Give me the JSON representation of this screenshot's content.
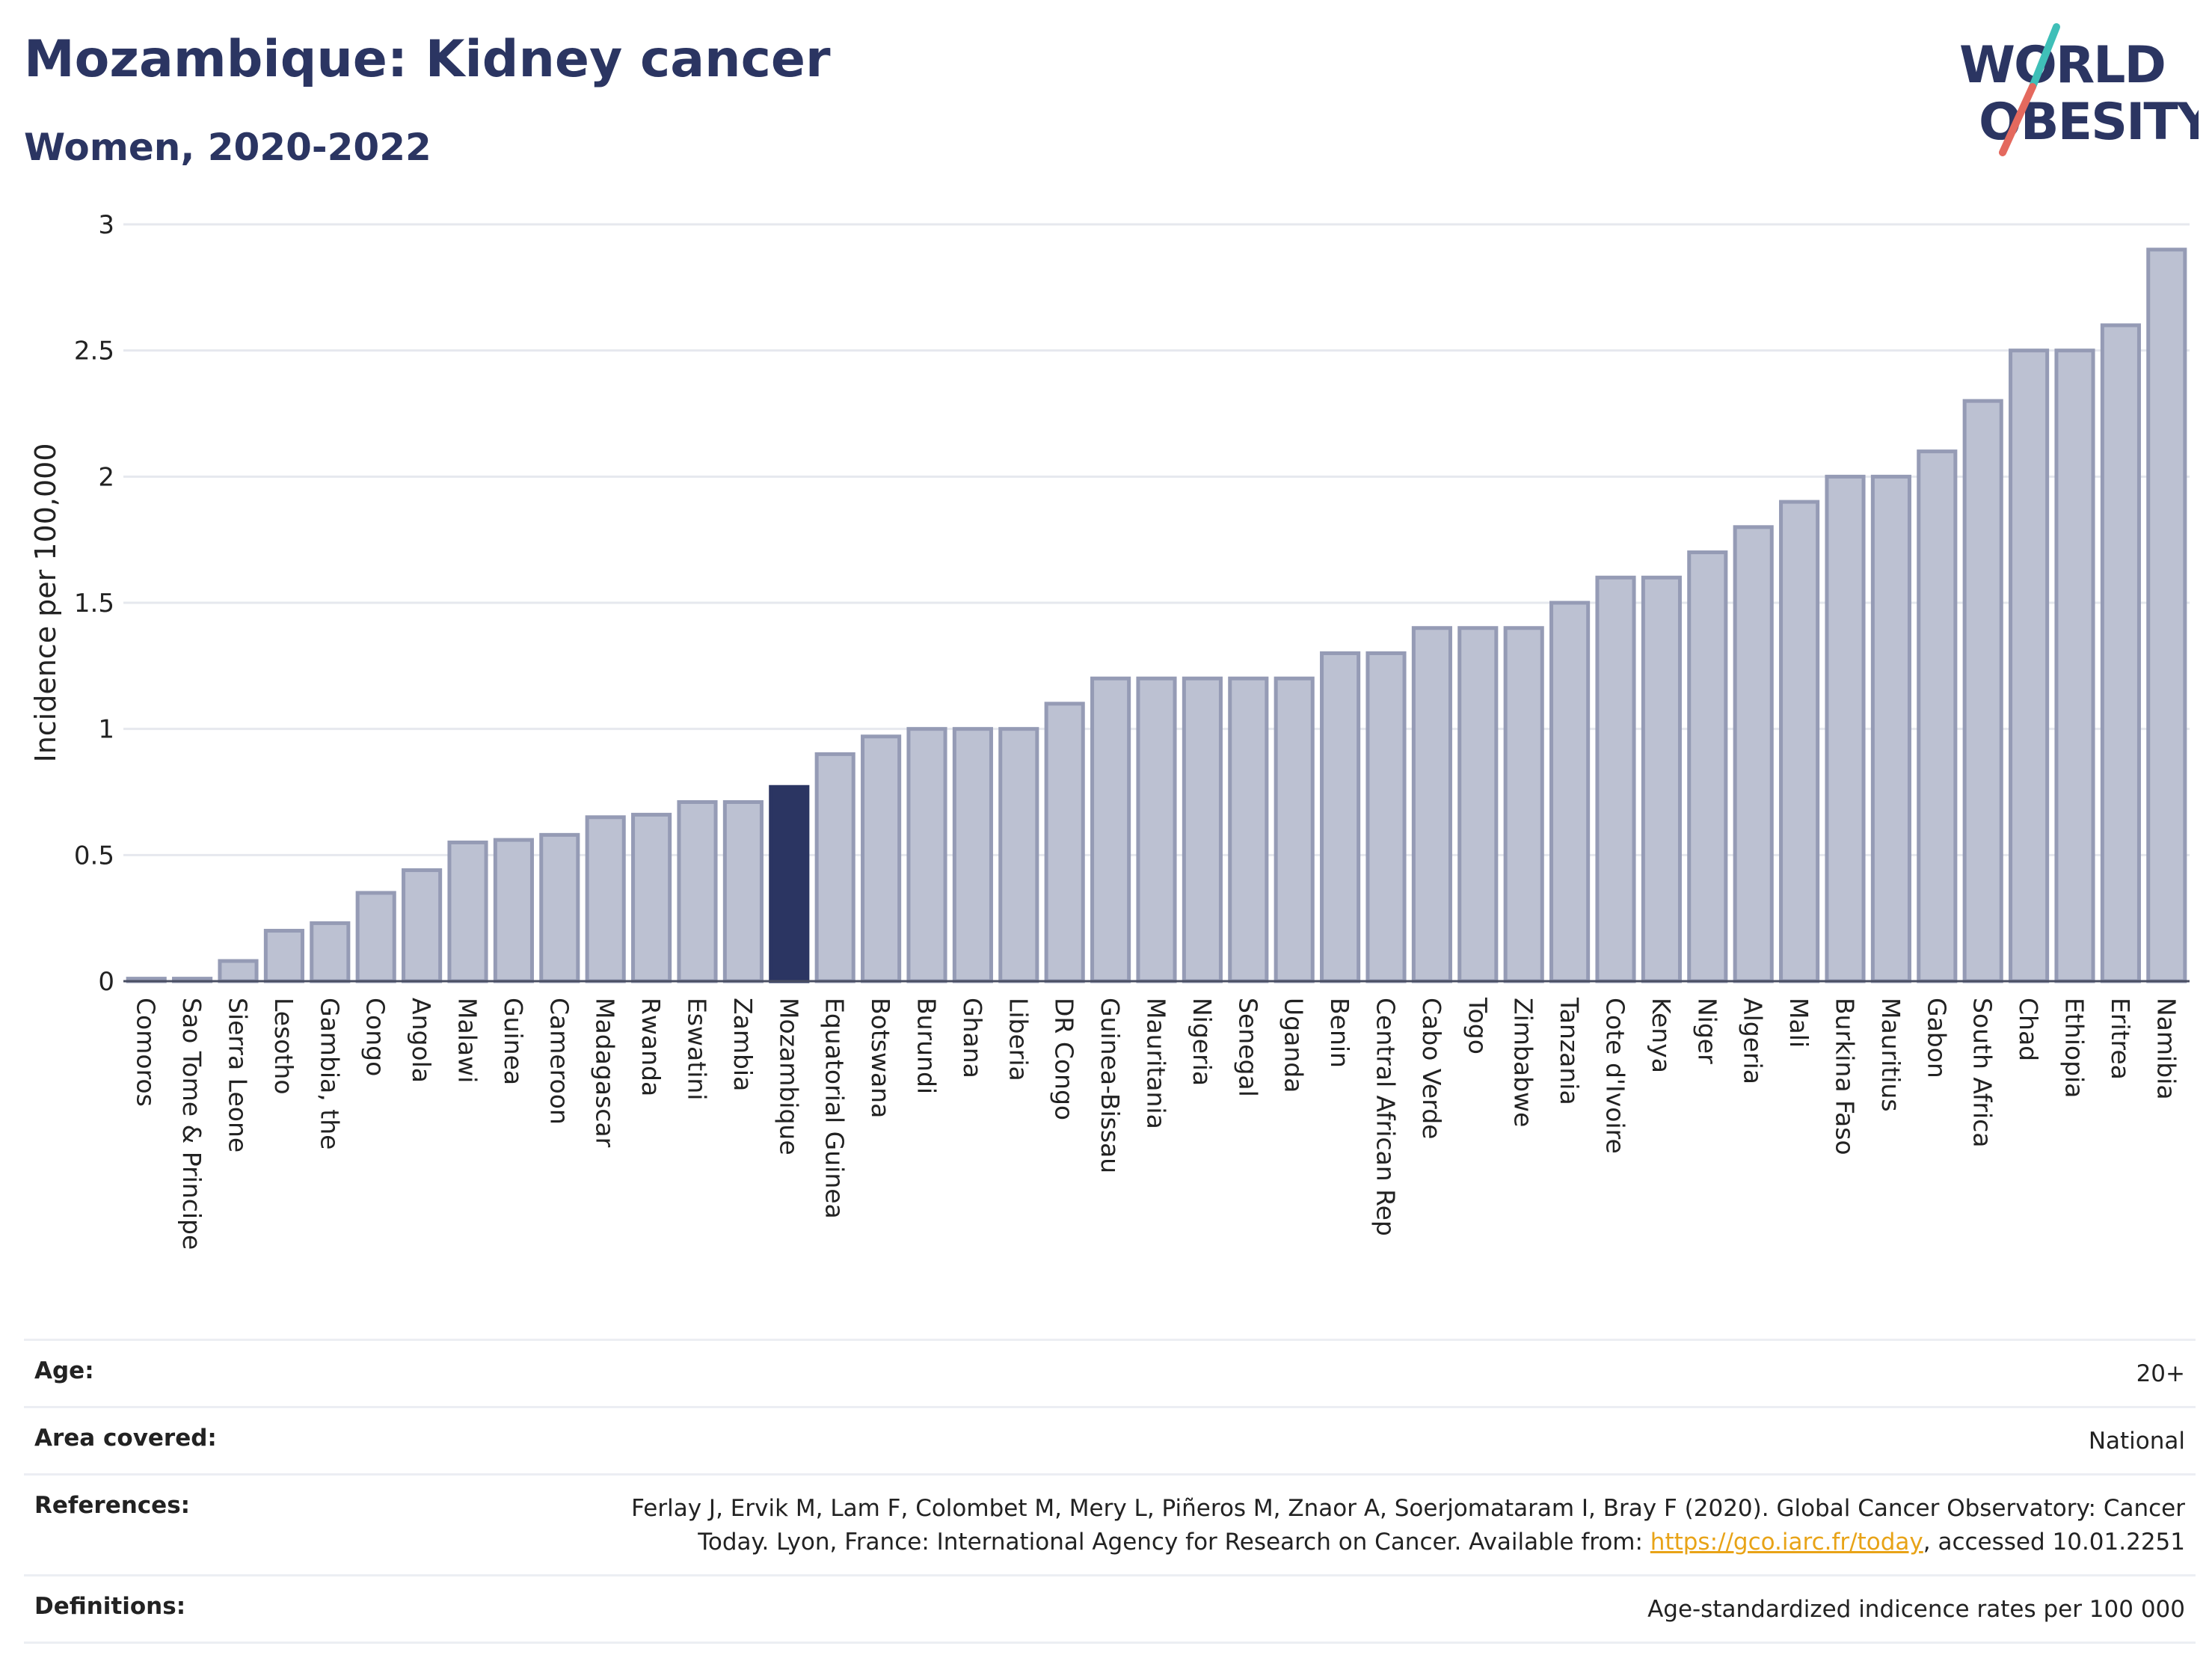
{
  "header": {
    "title": "Mozambique: Kidney cancer",
    "subtitle": "Women, 2020-2022"
  },
  "logo": {
    "line1": "WORLD",
    "line2": "OBESITY",
    "accent_teal": "#3fbfb8",
    "accent_coral": "#e4695e",
    "text_color": "#2b3562"
  },
  "chart_data": {
    "type": "bar",
    "title": "Mozambique: Kidney cancer",
    "subtitle": "Women, 2020-2022",
    "xlabel": "",
    "ylabel": "Incidence per 100,000",
    "ylim": [
      0,
      3
    ],
    "yticks": [
      0,
      0.5,
      1,
      1.5,
      2,
      2.5,
      3
    ],
    "ytick_labels": [
      "0",
      "0.5",
      "1",
      "1.5",
      "2",
      "2.5",
      "3"
    ],
    "grid": true,
    "legend": "none",
    "highlight": "Mozambique",
    "colors": {
      "bar": "#bcc1d2",
      "bar_border": "#959bb5",
      "highlight": "#2b3562",
      "grid": "#e6e8ee",
      "axis": "#4a4f63"
    },
    "categories": [
      "Comoros",
      "Sao Tome & Principe",
      "Sierra Leone",
      "Lesotho",
      "Gambia, the",
      "Congo",
      "Angola",
      "Malawi",
      "Guinea",
      "Cameroon",
      "Madagascar",
      "Rwanda",
      "Eswatini",
      "Zambia",
      "Mozambique",
      "Equatorial Guinea",
      "Botswana",
      "Burundi",
      "Ghana",
      "Liberia",
      "DR Congo",
      "Guinea-Bissau",
      "Mauritania",
      "Nigeria",
      "Senegal",
      "Uganda",
      "Benin",
      "Central African Rep",
      "Cabo Verde",
      "Togo",
      "Zimbabwe",
      "Tanzania",
      "Cote d'Ivoire",
      "Kenya",
      "Niger",
      "Algeria",
      "Mali",
      "Burkina Faso",
      "Mauritius",
      "Gabon",
      "South Africa",
      "Chad",
      "Ethiopia",
      "Eritrea",
      "Namibia"
    ],
    "values": [
      0.01,
      0.01,
      0.08,
      0.2,
      0.23,
      0.35,
      0.44,
      0.55,
      0.56,
      0.58,
      0.65,
      0.66,
      0.71,
      0.71,
      0.77,
      0.9,
      0.97,
      1.0,
      1.0,
      1.0,
      1.1,
      1.2,
      1.2,
      1.2,
      1.2,
      1.2,
      1.3,
      1.3,
      1.4,
      1.4,
      1.4,
      1.5,
      1.6,
      1.6,
      1.7,
      1.8,
      1.9,
      2.0,
      2.0,
      2.1,
      2.3,
      2.5,
      2.5,
      2.6,
      2.9
    ]
  },
  "info": {
    "age_label": "Age:",
    "age_value": "20+",
    "area_label": "Area covered:",
    "area_value": "National",
    "references_label": "References:",
    "references_text": "Ferlay J, Ervik M, Lam F, Colombet M, Mery L, Piñeros M, Znaor A, Soerjomataram I, Bray F (2020). Global Cancer Observatory: Cancer Today. Lyon, France: International Agency for Research on Cancer. Available from: ",
    "references_link": "https://gco.iarc.fr/today",
    "references_suffix": ", accessed 10.01.2251",
    "definitions_label": "Definitions:",
    "definitions_value": "Age-standardized indicence rates per 100 000"
  }
}
